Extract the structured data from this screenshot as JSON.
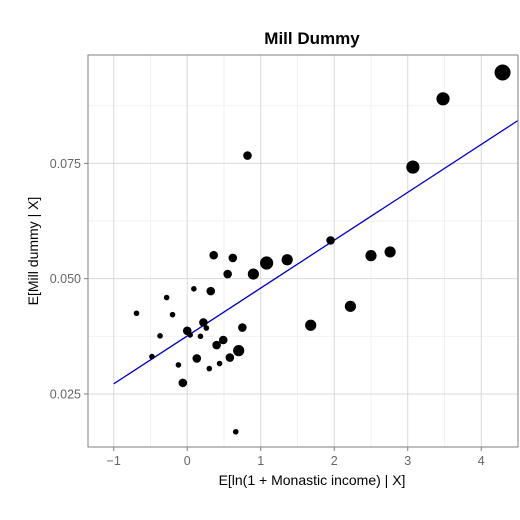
{
  "chart_data": {
    "type": "scatter",
    "title": "Mill Dummy",
    "xlabel": "E[ln(1 + Monastic income) | X]",
    "ylabel": "E[Mill dummy | X]",
    "xlim": [
      -1.35,
      4.5
    ],
    "ylim": [
      0.0135,
      0.0985
    ],
    "x_ticks": [
      -1,
      0,
      1,
      2,
      3,
      4
    ],
    "x_tick_labels": [
      "−1",
      "0",
      "1",
      "2",
      "3",
      "4"
    ],
    "y_ticks": [
      0.025,
      0.05,
      0.075
    ],
    "y_tick_labels": [
      "0.025",
      "0.050",
      "0.075"
    ],
    "grid": true,
    "colors": {
      "points": "#000000",
      "fit_line": "#0000cc",
      "panel_border": "#7f7f7f",
      "grid_major": "#d9d9d9",
      "grid_minor": "#f2f2f2"
    },
    "fit_line": {
      "x": [
        -1.0,
        4.5
      ],
      "y": [
        0.0272,
        0.0843
      ]
    },
    "points": [
      {
        "x": -0.69,
        "y": 0.0425,
        "s": 1
      },
      {
        "x": -0.48,
        "y": 0.0331,
        "s": 1
      },
      {
        "x": -0.37,
        "y": 0.0376,
        "s": 1
      },
      {
        "x": -0.28,
        "y": 0.0459,
        "s": 1
      },
      {
        "x": -0.2,
        "y": 0.0422,
        "s": 1
      },
      {
        "x": -0.12,
        "y": 0.0313,
        "s": 1
      },
      {
        "x": -0.06,
        "y": 0.0274,
        "s": 2
      },
      {
        "x": 0.0,
        "y": 0.0387,
        "s": 2
      },
      {
        "x": 0.04,
        "y": 0.0378,
        "s": 1
      },
      {
        "x": 0.09,
        "y": 0.0478,
        "s": 1
      },
      {
        "x": 0.13,
        "y": 0.0327,
        "s": 2
      },
      {
        "x": 0.18,
        "y": 0.0375,
        "s": 1
      },
      {
        "x": 0.22,
        "y": 0.0405,
        "s": 2
      },
      {
        "x": 0.26,
        "y": 0.0393,
        "s": 1
      },
      {
        "x": 0.3,
        "y": 0.0305,
        "s": 1
      },
      {
        "x": 0.32,
        "y": 0.0473,
        "s": 2
      },
      {
        "x": 0.36,
        "y": 0.0551,
        "s": 2
      },
      {
        "x": 0.4,
        "y": 0.0356,
        "s": 2
      },
      {
        "x": 0.44,
        "y": 0.0316,
        "s": 1
      },
      {
        "x": 0.49,
        "y": 0.0367,
        "s": 2
      },
      {
        "x": 0.55,
        "y": 0.051,
        "s": 2
      },
      {
        "x": 0.58,
        "y": 0.0329,
        "s": 2
      },
      {
        "x": 0.62,
        "y": 0.0545,
        "s": 2
      },
      {
        "x": 0.66,
        "y": 0.0168,
        "s": 1
      },
      {
        "x": 0.7,
        "y": 0.0344,
        "s": 3
      },
      {
        "x": 0.75,
        "y": 0.0394,
        "s": 2
      },
      {
        "x": 0.82,
        "y": 0.0767,
        "s": 2
      },
      {
        "x": 0.9,
        "y": 0.051,
        "s": 3
      },
      {
        "x": 1.08,
        "y": 0.0534,
        "s": 4
      },
      {
        "x": 1.36,
        "y": 0.0541,
        "s": 3
      },
      {
        "x": 1.68,
        "y": 0.0399,
        "s": 3
      },
      {
        "x": 1.95,
        "y": 0.0583,
        "s": 2
      },
      {
        "x": 2.22,
        "y": 0.044,
        "s": 3
      },
      {
        "x": 2.5,
        "y": 0.055,
        "s": 3
      },
      {
        "x": 2.76,
        "y": 0.0558,
        "s": 3
      },
      {
        "x": 3.07,
        "y": 0.0742,
        "s": 4
      },
      {
        "x": 3.48,
        "y": 0.089,
        "s": 4
      },
      {
        "x": 4.29,
        "y": 0.0947,
        "s": 5
      }
    ]
  }
}
